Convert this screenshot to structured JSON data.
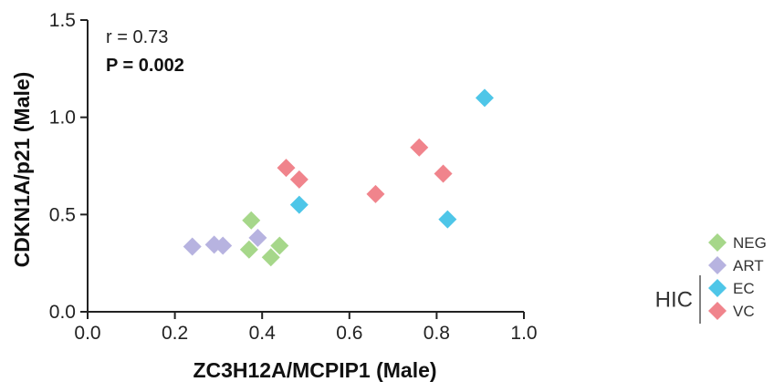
{
  "chart_data": {
    "type": "scatter",
    "xlabel": "ZC3H12A/MCPIP1 (Male)",
    "ylabel": "CDKN1A/p21 (Male)",
    "xlim": [
      0.0,
      1.0
    ],
    "ylim": [
      0.0,
      1.5
    ],
    "x_ticks": [
      "0.0",
      "0.2",
      "0.4",
      "0.6",
      "0.8",
      "1.0"
    ],
    "y_ticks": [
      "0.0",
      "0.5",
      "1.0",
      "1.5"
    ],
    "grid": false,
    "marker": "diamond",
    "annotations": {
      "r": "r = 0.73",
      "p": "P = 0.002"
    },
    "legend_position": "right",
    "legend_group_label": "HIC",
    "series": [
      {
        "name": "NEG",
        "color": "#a6d78a",
        "points": [
          {
            "x": 0.375,
            "y": 0.47
          },
          {
            "x": 0.37,
            "y": 0.32
          },
          {
            "x": 0.42,
            "y": 0.28
          },
          {
            "x": 0.44,
            "y": 0.34
          }
        ]
      },
      {
        "name": "ART",
        "color": "#b7b3e0",
        "points": [
          {
            "x": 0.24,
            "y": 0.335
          },
          {
            "x": 0.29,
            "y": 0.345
          },
          {
            "x": 0.31,
            "y": 0.34
          },
          {
            "x": 0.39,
            "y": 0.38
          }
        ]
      },
      {
        "name": "EC",
        "color": "#4ec6e8",
        "points": [
          {
            "x": 0.485,
            "y": 0.55
          },
          {
            "x": 0.825,
            "y": 0.475
          },
          {
            "x": 0.91,
            "y": 1.1
          }
        ]
      },
      {
        "name": "VC",
        "color": "#f0848c",
        "points": [
          {
            "x": 0.455,
            "y": 0.74
          },
          {
            "x": 0.485,
            "y": 0.68
          },
          {
            "x": 0.66,
            "y": 0.605
          },
          {
            "x": 0.76,
            "y": 0.845
          },
          {
            "x": 0.815,
            "y": 0.71
          }
        ]
      }
    ]
  }
}
